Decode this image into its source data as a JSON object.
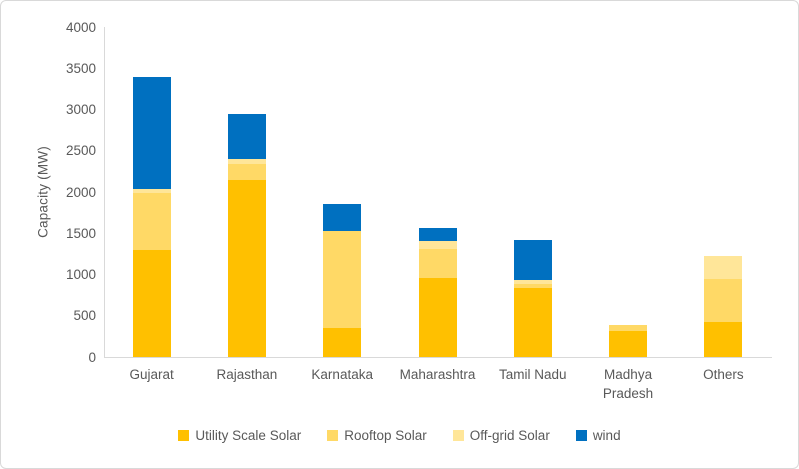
{
  "chart_data": {
    "type": "bar",
    "stacked": true,
    "title": "",
    "xlabel": "",
    "ylabel": "Capacity (MW)",
    "ylim": [
      0,
      4000
    ],
    "ytick_step": 500,
    "grid": false,
    "legend_position": "bottom",
    "categories": [
      "Gujarat",
      "Rajasthan",
      "Karnataka",
      "Maharashtra",
      "Tamil Nadu",
      "Madhya Pradesh",
      "Others"
    ],
    "series": [
      {
        "name": "Utility Scale Solar",
        "color": "#FFC000",
        "values": [
          1300,
          2150,
          350,
          960,
          835,
          320,
          420
        ]
      },
      {
        "name": "Rooftop Solar",
        "color": "#FFD966",
        "values": [
          690,
          190,
          1180,
          350,
          50,
          70,
          520
        ]
      },
      {
        "name": "Off-grid Solar",
        "color": "#FFE699",
        "values": [
          50,
          60,
          0,
          100,
          45,
          0,
          280
        ]
      },
      {
        "name": "wind",
        "color": "#0070C0",
        "values": [
          1360,
          540,
          320,
          160,
          490,
          0,
          0
        ]
      }
    ],
    "totals": [
      3400,
      2940,
      1850,
      1570,
      1420,
      390,
      1220
    ]
  },
  "colors": {
    "axis_text": "#595959",
    "axis_line": "#D9D9D9",
    "frame_border": "#D9D9D9",
    "background": "#FFFFFF"
  }
}
